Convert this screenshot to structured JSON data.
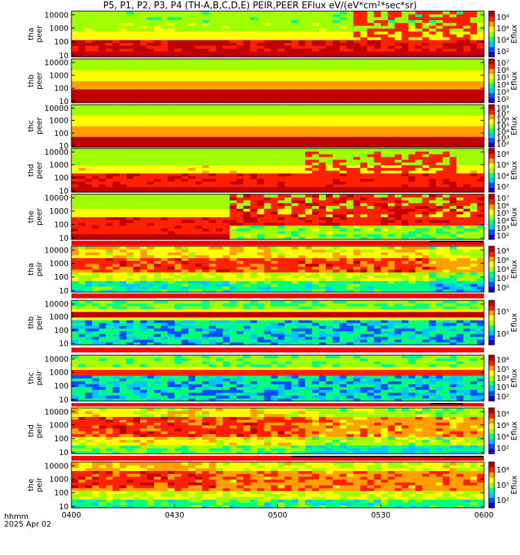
{
  "title": "P5, P1, P2, P3, P4 (TH-A,B,C,D,E) PEIR,PEER EFlux eV/(eV*cm²*sec*sr)",
  "footer": {
    "label": "hhmm",
    "date": "2025 Apr 02"
  },
  "colors": {
    "colorbar": [
      "#1e00c8",
      "#0050ff",
      "#00c8ff",
      "#00ff80",
      "#a0ff00",
      "#ffff00",
      "#ffa000",
      "#ff2000",
      "#c00000"
    ],
    "status_bar_red": "#ff0000",
    "status_bar_black": "#000000"
  },
  "chart_data": {
    "type": "heatmap",
    "x_ticks": [
      "0400",
      "0430",
      "0500",
      "0530",
      "0600"
    ],
    "y_ticks": [
      "10",
      "100",
      "1000",
      "10000"
    ],
    "y_scale": "log",
    "colorbar_label": "Eflux",
    "panels": [
      {
        "probe": "tha",
        "species": "peer",
        "colorbar_ticks": [
          "10²",
          "10⁴",
          "10⁶",
          "10⁸"
        ]
      },
      {
        "probe": "thb",
        "species": "peer",
        "colorbar_ticks": [
          "10²",
          "10³",
          "10⁴",
          "10⁵",
          "10⁶",
          "10⁷"
        ]
      },
      {
        "probe": "thc",
        "species": "peer",
        "colorbar_ticks": [
          "10²",
          "10³",
          "10⁴",
          "10⁵",
          "10⁶",
          "10⁷",
          "10⁸"
        ]
      },
      {
        "probe": "thd",
        "species": "peer",
        "colorbar_ticks": [
          "10²",
          "10⁴",
          "10⁶",
          "10⁸"
        ]
      },
      {
        "probe": "the",
        "species": "peer",
        "colorbar_ticks": [
          "10²",
          "10³",
          "10⁴",
          "10⁵",
          "10⁶",
          "10⁷"
        ]
      },
      {
        "probe": "tha",
        "species": "peir",
        "colorbar_ticks": [
          "10⁰",
          "10²",
          "10⁴",
          "10⁶",
          "10⁸"
        ]
      },
      {
        "probe": "thb",
        "species": "peir",
        "colorbar_ticks": [
          "10²",
          "10⁵"
        ]
      },
      {
        "probe": "thc",
        "species": "peir",
        "colorbar_ticks": [
          "10²",
          "10³",
          "10⁴",
          "10⁵",
          "10⁶"
        ]
      },
      {
        "probe": "thd",
        "species": "peir",
        "colorbar_ticks": [
          "10²",
          "10⁴",
          "10⁶",
          "10⁸"
        ]
      },
      {
        "probe": "the",
        "species": "peir",
        "colorbar_ticks": [
          "10²",
          "10⁵",
          "10⁸"
        ]
      }
    ]
  }
}
